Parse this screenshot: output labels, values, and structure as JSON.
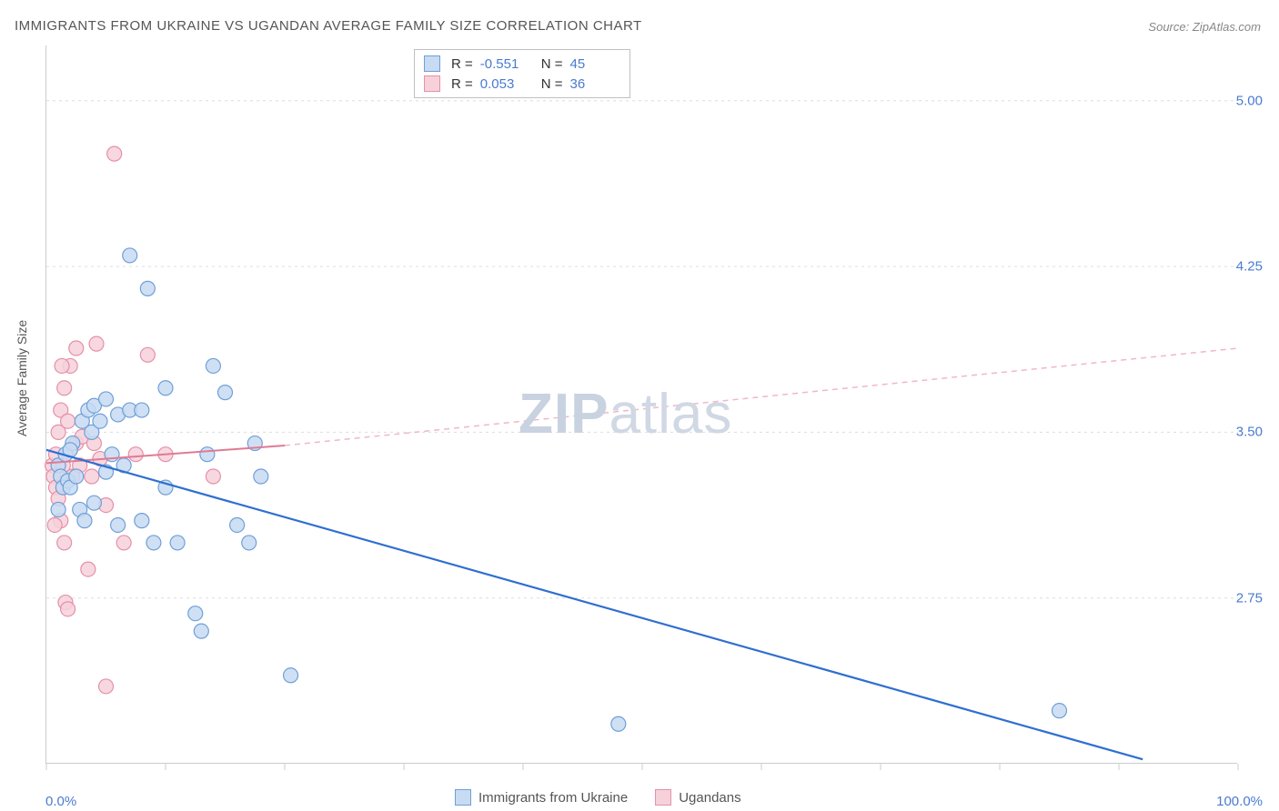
{
  "title": "IMMIGRANTS FROM UKRAINE VS UGANDAN AVERAGE FAMILY SIZE CORRELATION CHART",
  "source_label": "Source:",
  "source_value": "ZipAtlas.com",
  "watermark": {
    "bold": "ZIP",
    "light": "atlas"
  },
  "y_axis_label": "Average Family Size",
  "chart": {
    "type": "scatter",
    "xlim": [
      0,
      100
    ],
    "ylim": [
      2.0,
      5.25
    ],
    "y_ticks": [
      2.75,
      3.5,
      4.25,
      5.0
    ],
    "y_tick_labels": [
      "2.75",
      "3.50",
      "4.25",
      "5.00"
    ],
    "x_ticks": [
      0,
      10,
      20,
      30,
      40,
      50,
      60,
      70,
      80,
      90,
      100
    ],
    "x_min_label": "0.0%",
    "x_max_label": "100.0%",
    "grid_color": "#dddddd",
    "axis_color": "#cccccc",
    "background_color": "#ffffff",
    "marker_radius": 8,
    "marker_stroke_width": 1.2,
    "series": [
      {
        "name": "Immigrants from Ukraine",
        "fill": "#c7dbf2",
        "stroke": "#6f9fd8",
        "r_value": "-0.551",
        "n_value": "45",
        "trend": {
          "x1": 0,
          "y1": 3.42,
          "x2": 92,
          "y2": 2.02,
          "stroke": "#2f6fd0",
          "width": 2.2,
          "dash": "none"
        },
        "points": [
          [
            1.0,
            3.35
          ],
          [
            1.2,
            3.3
          ],
          [
            1.4,
            3.25
          ],
          [
            1.6,
            3.4
          ],
          [
            1.8,
            3.28
          ],
          [
            2.0,
            3.25
          ],
          [
            2.2,
            3.45
          ],
          [
            2.5,
            3.3
          ],
          [
            2.8,
            3.15
          ],
          [
            3.0,
            3.55
          ],
          [
            3.2,
            3.1
          ],
          [
            3.5,
            3.6
          ],
          [
            3.8,
            3.5
          ],
          [
            4.0,
            3.18
          ],
          [
            4.0,
            3.62
          ],
          [
            4.5,
            3.55
          ],
          [
            5.0,
            3.32
          ],
          [
            5.0,
            3.65
          ],
          [
            5.5,
            3.4
          ],
          [
            6.0,
            3.58
          ],
          [
            6.0,
            3.08
          ],
          [
            6.5,
            3.35
          ],
          [
            7.0,
            3.6
          ],
          [
            7.0,
            4.3
          ],
          [
            8.0,
            3.1
          ],
          [
            8.0,
            3.6
          ],
          [
            8.5,
            4.15
          ],
          [
            9.0,
            3.0
          ],
          [
            10.0,
            3.25
          ],
          [
            10.0,
            3.7
          ],
          [
            11.0,
            3.0
          ],
          [
            12.5,
            2.68
          ],
          [
            13.0,
            2.6
          ],
          [
            13.5,
            3.4
          ],
          [
            14.0,
            3.8
          ],
          [
            15.0,
            3.68
          ],
          [
            16.0,
            3.08
          ],
          [
            17.0,
            3.0
          ],
          [
            17.5,
            3.45
          ],
          [
            18.0,
            3.3
          ],
          [
            20.5,
            2.4
          ],
          [
            48.0,
            2.18
          ],
          [
            85.0,
            2.24
          ],
          [
            1.0,
            3.15
          ],
          [
            2.0,
            3.42
          ]
        ]
      },
      {
        "name": "Ugandans",
        "fill": "#f6d1da",
        "stroke": "#e690a7",
        "r_value": "0.053",
        "n_value": "36",
        "trend_solid": {
          "x1": 0,
          "y1": 3.36,
          "x2": 20,
          "y2": 3.44,
          "stroke": "#e07a94",
          "width": 2.0
        },
        "trend_dash": {
          "x1": 20,
          "y1": 3.44,
          "x2": 100,
          "y2": 3.88,
          "stroke": "#f0b8c5",
          "width": 1.5,
          "dash": "6 5"
        },
        "points": [
          [
            0.5,
            3.35
          ],
          [
            0.6,
            3.3
          ],
          [
            0.8,
            3.25
          ],
          [
            0.8,
            3.4
          ],
          [
            1.0,
            3.2
          ],
          [
            1.0,
            3.5
          ],
          [
            1.2,
            3.1
          ],
          [
            1.2,
            3.6
          ],
          [
            1.4,
            3.35
          ],
          [
            1.5,
            3.7
          ],
          [
            1.5,
            3.0
          ],
          [
            1.8,
            3.55
          ],
          [
            1.6,
            2.73
          ],
          [
            1.8,
            2.7
          ],
          [
            2.0,
            3.42
          ],
          [
            2.0,
            3.8
          ],
          [
            2.2,
            3.3
          ],
          [
            2.5,
            3.45
          ],
          [
            2.5,
            3.88
          ],
          [
            2.8,
            3.35
          ],
          [
            3.0,
            3.48
          ],
          [
            3.5,
            2.88
          ],
          [
            3.8,
            3.3
          ],
          [
            4.0,
            3.45
          ],
          [
            4.2,
            3.9
          ],
          [
            4.5,
            3.38
          ],
          [
            5.0,
            3.17
          ],
          [
            5.0,
            2.35
          ],
          [
            5.7,
            4.76
          ],
          [
            6.5,
            3.0
          ],
          [
            7.5,
            3.4
          ],
          [
            8.5,
            3.85
          ],
          [
            10.0,
            3.4
          ],
          [
            14.0,
            3.3
          ],
          [
            1.3,
            3.8
          ],
          [
            0.7,
            3.08
          ]
        ]
      }
    ]
  },
  "legend_top": {
    "r_label": "R =",
    "n_label": "N ="
  },
  "legend_bottom": {
    "series1": "Immigrants from Ukraine",
    "series2": "Ugandans"
  }
}
